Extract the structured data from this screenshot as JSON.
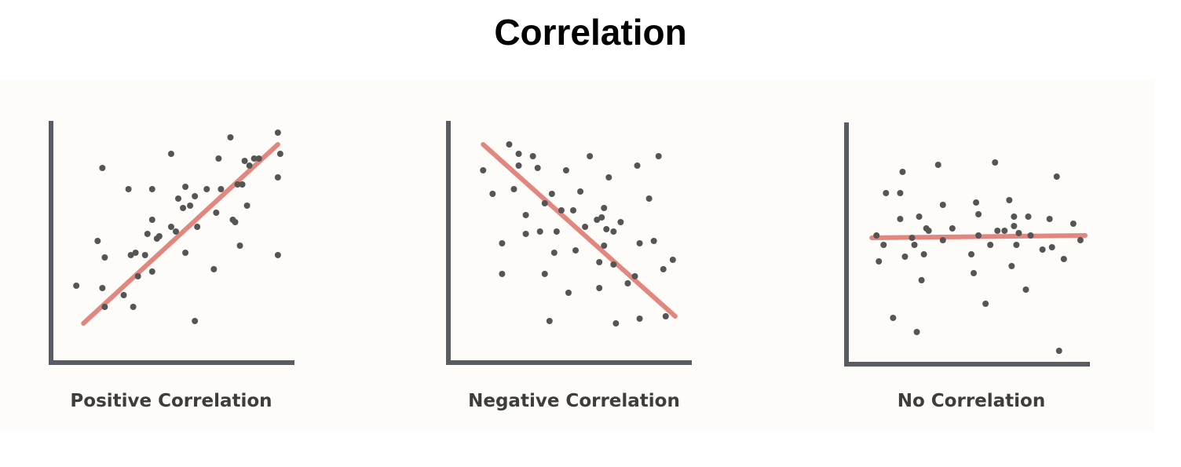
{
  "title": "Correlation",
  "colors": {
    "axis": "#5a5c63",
    "point": "#555555",
    "trend": "#e07b72",
    "panel": "#fdfcf8",
    "caption": "#3d3d3d"
  },
  "chart_data": [
    {
      "type": "scatter",
      "caption": "Positive Correlation",
      "xlabel": "",
      "ylabel": "",
      "xlim": [
        0,
        100
      ],
      "ylim": [
        0,
        100
      ],
      "trend": [
        [
          11,
          14
        ],
        [
          93,
          90
        ]
      ],
      "points": [
        [
          8,
          30
        ],
        [
          19,
          80
        ],
        [
          17,
          49
        ],
        [
          20,
          42
        ],
        [
          19,
          29
        ],
        [
          20,
          21
        ],
        [
          30,
          71
        ],
        [
          32,
          21
        ],
        [
          28,
          26
        ],
        [
          31,
          43
        ],
        [
          33,
          44
        ],
        [
          34,
          34
        ],
        [
          37,
          43
        ],
        [
          38,
          52
        ],
        [
          40,
          36
        ],
        [
          40,
          58
        ],
        [
          40,
          71
        ],
        [
          42,
          50
        ],
        [
          43,
          51
        ],
        [
          48,
          86
        ],
        [
          48,
          55
        ],
        [
          50,
          53
        ],
        [
          53,
          63
        ],
        [
          54,
          72
        ],
        [
          54,
          44
        ],
        [
          51,
          67
        ],
        [
          56,
          64
        ],
        [
          58,
          15
        ],
        [
          58,
          68
        ],
        [
          59,
          55
        ],
        [
          63,
          71
        ],
        [
          66,
          37
        ],
        [
          67,
          61
        ],
        [
          68,
          84
        ],
        [
          69,
          71
        ],
        [
          73,
          93
        ],
        [
          74,
          58
        ],
        [
          75,
          57
        ],
        [
          76,
          73
        ],
        [
          77,
          47
        ],
        [
          78,
          73
        ],
        [
          79,
          83
        ],
        [
          80,
          64
        ],
        [
          81,
          81
        ],
        [
          83,
          84
        ],
        [
          93,
          95
        ],
        [
          94,
          86
        ],
        [
          93,
          76
        ],
        [
          93,
          43
        ],
        [
          85,
          84
        ]
      ]
    },
    {
      "type": "scatter",
      "caption": "Negative Correlation",
      "xlabel": "",
      "ylabel": "",
      "xlim": [
        0,
        100
      ],
      "ylim": [
        0,
        100
      ],
      "trend": [
        [
          12,
          90
        ],
        [
          93,
          17
        ]
      ],
      "points": [
        [
          12,
          79
        ],
        [
          16,
          69
        ],
        [
          20,
          48
        ],
        [
          20,
          35
        ],
        [
          23,
          90
        ],
        [
          25,
          71
        ],
        [
          27,
          81
        ],
        [
          27,
          86
        ],
        [
          30,
          60
        ],
        [
          30,
          52
        ],
        [
          33,
          85
        ],
        [
          35,
          80
        ],
        [
          36,
          53
        ],
        [
          38,
          35
        ],
        [
          38,
          65
        ],
        [
          40,
          15
        ],
        [
          41,
          69
        ],
        [
          42,
          44
        ],
        [
          43,
          53
        ],
        [
          45,
          62
        ],
        [
          47,
          79
        ],
        [
          48,
          27
        ],
        [
          50,
          62
        ],
        [
          51,
          45
        ],
        [
          53,
          70
        ],
        [
          55,
          55
        ],
        [
          57,
          85
        ],
        [
          60,
          58
        ],
        [
          61,
          29
        ],
        [
          61,
          40
        ],
        [
          62,
          59
        ],
        [
          63,
          63
        ],
        [
          64,
          54
        ],
        [
          63,
          47
        ],
        [
          65,
          76
        ],
        [
          67,
          53
        ],
        [
          67,
          39
        ],
        [
          68,
          14
        ],
        [
          70,
          57
        ],
        [
          73,
          31
        ],
        [
          76,
          34
        ],
        [
          77,
          81
        ],
        [
          78,
          48
        ],
        [
          78,
          16
        ],
        [
          82,
          67
        ],
        [
          84,
          49
        ],
        [
          86,
          85
        ],
        [
          88,
          37
        ],
        [
          89,
          17
        ],
        [
          92,
          41
        ]
      ]
    },
    {
      "type": "scatter",
      "caption": "No Correlation",
      "xlabel": "",
      "ylabel": "",
      "xlim": [
        0,
        100
      ],
      "ylim": [
        0,
        100
      ],
      "trend": [
        [
          8,
          51
        ],
        [
          98,
          52
        ]
      ],
      "points": [
        [
          10,
          52
        ],
        [
          11,
          41
        ],
        [
          13,
          48
        ],
        [
          14,
          70
        ],
        [
          17,
          17
        ],
        [
          20,
          70
        ],
        [
          20,
          59
        ],
        [
          21,
          79
        ],
        [
          22,
          43
        ],
        [
          25,
          51
        ],
        [
          26,
          48
        ],
        [
          27,
          11
        ],
        [
          28,
          60
        ],
        [
          29,
          33
        ],
        [
          30,
          44
        ],
        [
          31,
          55
        ],
        [
          32,
          54
        ],
        [
          36,
          82
        ],
        [
          38,
          65
        ],
        [
          38,
          50
        ],
        [
          42,
          55
        ],
        [
          50,
          44
        ],
        [
          51,
          36
        ],
        [
          52,
          66
        ],
        [
          53,
          61
        ],
        [
          53,
          52
        ],
        [
          56,
          23
        ],
        [
          58,
          48
        ],
        [
          60,
          83
        ],
        [
          61,
          54
        ],
        [
          64,
          54
        ],
        [
          66,
          67
        ],
        [
          67,
          39
        ],
        [
          68,
          56
        ],
        [
          68,
          60
        ],
        [
          69,
          48
        ],
        [
          70,
          53
        ],
        [
          73,
          29
        ],
        [
          74,
          60
        ],
        [
          75,
          52
        ],
        [
          80,
          46
        ],
        [
          83,
          59
        ],
        [
          84,
          47
        ],
        [
          86,
          77
        ],
        [
          87,
          3
        ],
        [
          89,
          42
        ],
        [
          93,
          57
        ],
        [
          96,
          50
        ]
      ]
    }
  ]
}
